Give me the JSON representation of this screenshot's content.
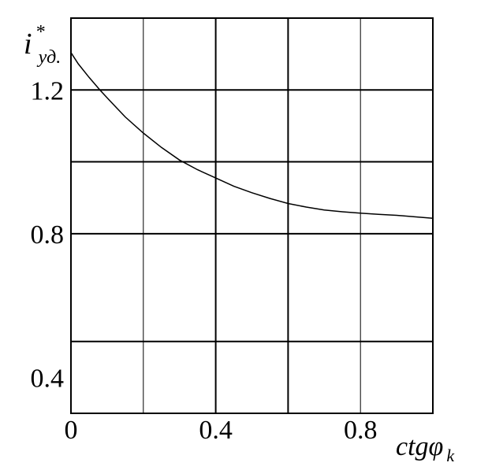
{
  "chart_data": {
    "type": "line",
    "title": "",
    "xlabel": {
      "base": "ctgφ",
      "sub": "k"
    },
    "ylabel": {
      "base": "i",
      "sup": "*",
      "sub": "уд."
    },
    "xlim": [
      0,
      1.0
    ],
    "ylim": [
      0.3,
      1.4
    ],
    "x_ticks": [
      {
        "value": 0,
        "label": "0"
      },
      {
        "value": 0.4,
        "label": "0.4"
      },
      {
        "value": 0.8,
        "label": "0.8"
      }
    ],
    "y_ticks": [
      {
        "value": 1.2,
        "label": "1.2"
      },
      {
        "value": 0.8,
        "label": "0.8"
      },
      {
        "value": 0.4,
        "label": "0.4"
      }
    ],
    "x_gridlines": [
      0.2,
      0.4,
      0.6,
      0.8,
      1.0
    ],
    "y_gridlines": [
      0.5,
      0.8,
      1.0,
      1.2,
      1.4
    ],
    "grid": true,
    "series": [
      {
        "x": [
          0.0,
          0.02,
          0.05,
          0.08,
          0.1,
          0.15,
          0.2,
          0.25,
          0.3,
          0.35,
          0.4,
          0.45,
          0.5,
          0.55,
          0.6,
          0.65,
          0.7,
          0.75,
          0.8,
          0.85,
          0.9,
          0.95,
          1.0
        ],
        "y": [
          1.304,
          1.273,
          1.235,
          1.2,
          1.178,
          1.125,
          1.08,
          1.04,
          1.005,
          0.978,
          0.955,
          0.932,
          0.914,
          0.898,
          0.884,
          0.874,
          0.866,
          0.861,
          0.857,
          0.854,
          0.851,
          0.847,
          0.843
        ]
      }
    ]
  }
}
